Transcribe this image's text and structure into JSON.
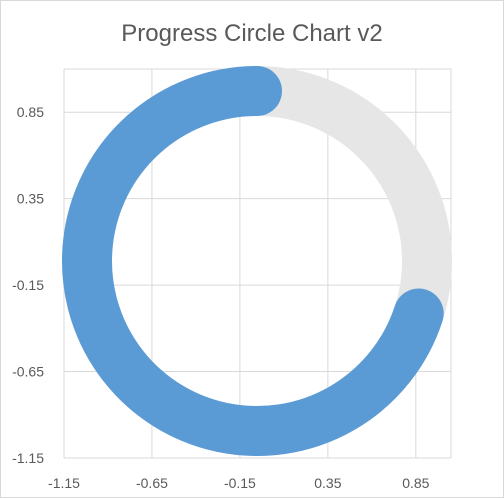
{
  "chart_data": {
    "type": "progress_circle",
    "title": "Progress Circle Chart v2",
    "progress": 0.7,
    "xlim": [
      -1.15,
      1.05
    ],
    "ylim": [
      -1.15,
      1.1
    ],
    "x_ticks": [
      "-1.15",
      "-0.65",
      "-0.15",
      "0.35",
      "0.85"
    ],
    "y_ticks": [
      "0.85",
      "0.35",
      "-0.15",
      "-0.65",
      "-1.15"
    ],
    "grid": true,
    "colors": {
      "progress": "#5b9bd5",
      "track": "#e6e6e6",
      "grid": "#d9d9d9",
      "text": "#595959"
    }
  }
}
